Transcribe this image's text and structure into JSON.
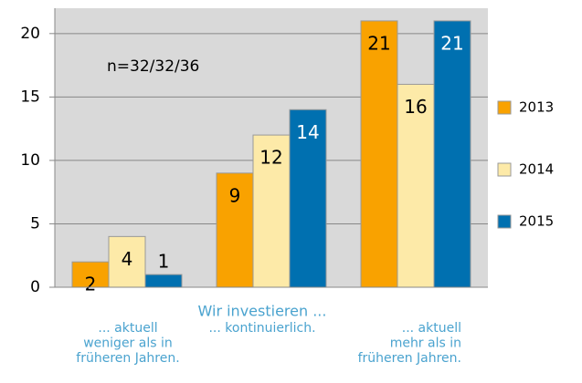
{
  "chart_data": {
    "type": "bar",
    "categories": [
      "... aktuell\nweniger als in\nfrüheren Jahren.",
      "... kontinuierlich.",
      "... aktuell\nmehr als in\nfrüheren Jahren."
    ],
    "x_label": "Wir investieren ...",
    "annotation": "n=32/32/36",
    "series": [
      {
        "name": "2013",
        "color": "#f9a200",
        "values": [
          2,
          9,
          21
        ]
      },
      {
        "name": "2014",
        "color": "#fdeaa8",
        "values": [
          4,
          12,
          16
        ]
      },
      {
        "name": "2015",
        "color": "#0070b0",
        "values": [
          1,
          14,
          21
        ]
      }
    ],
    "ylim": [
      0,
      22
    ],
    "yticks": [
      0,
      5,
      10,
      15,
      20
    ],
    "grid": true,
    "legend": "right"
  }
}
